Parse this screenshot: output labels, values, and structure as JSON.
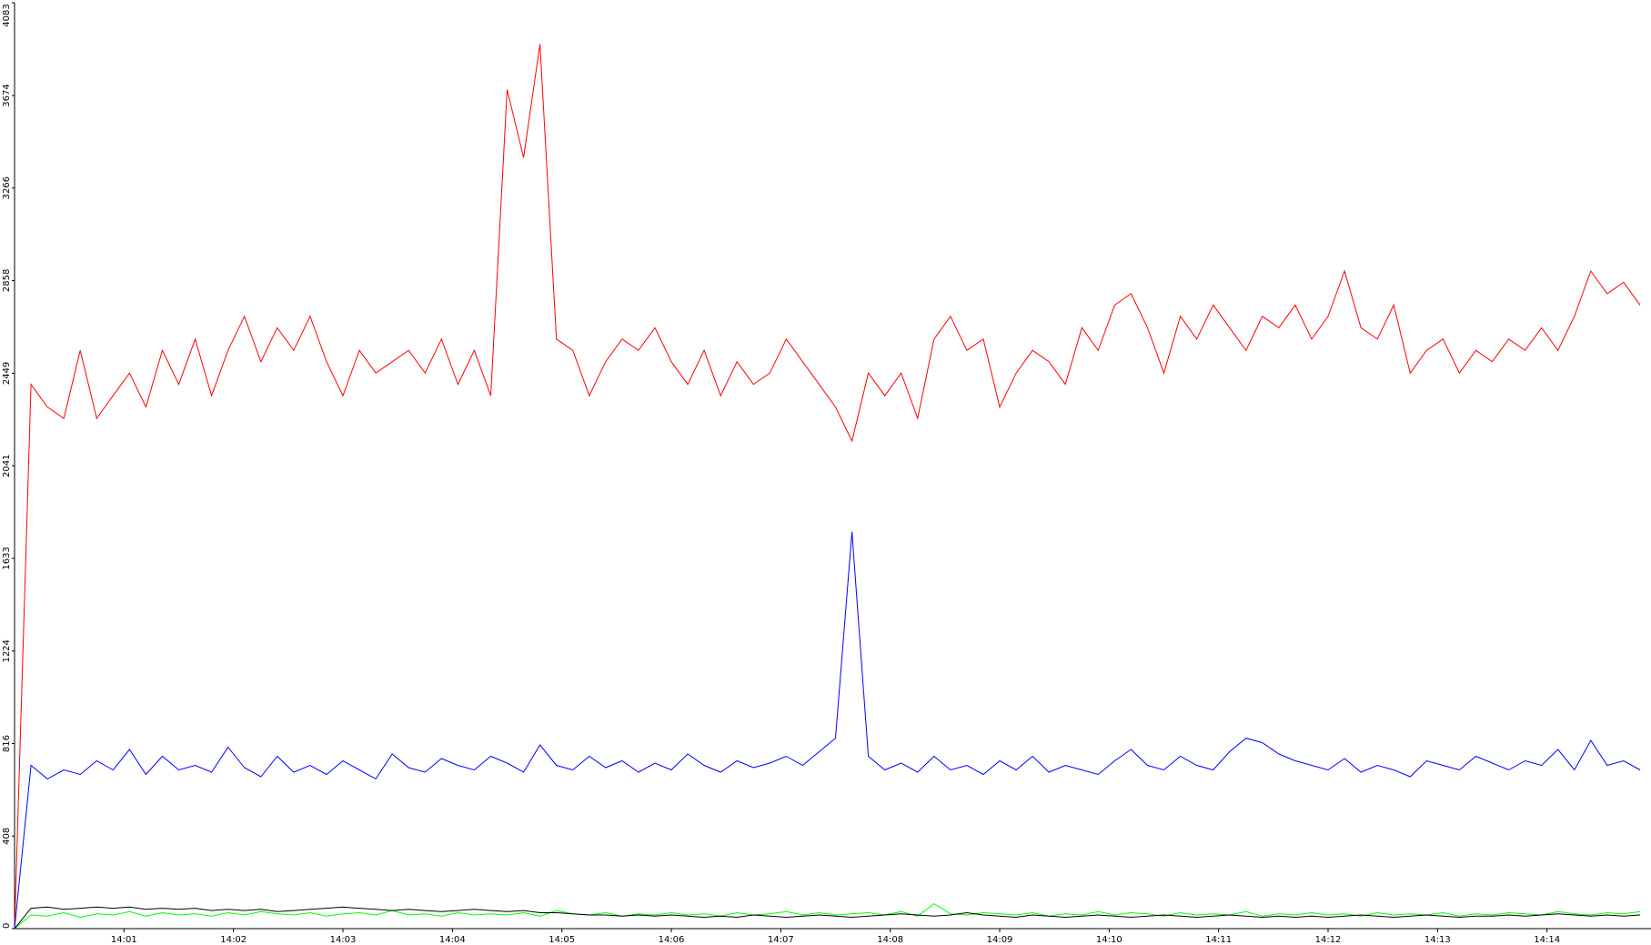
{
  "chart_data": {
    "type": "line",
    "x": [
      0,
      0.15,
      0.3,
      0.45,
      0.6,
      0.75,
      0.9,
      1.05,
      1.2,
      1.35,
      1.5,
      1.65,
      1.8,
      1.95,
      2.1,
      2.25,
      2.4,
      2.55,
      2.7,
      2.85,
      3,
      3.15,
      3.3,
      3.45,
      3.6,
      3.75,
      3.9,
      4.05,
      4.2,
      4.35,
      4.5,
      4.65,
      4.8,
      4.95,
      5.1,
      5.25,
      5.4,
      5.55,
      5.7,
      5.85,
      6,
      6.15,
      6.3,
      6.45,
      6.6,
      6.75,
      6.9,
      7.05,
      7.2,
      7.35,
      7.5,
      7.65,
      7.8,
      7.95,
      8.1,
      8.25,
      8.4,
      8.55,
      8.7,
      8.85,
      9,
      9.15,
      9.3,
      9.45,
      9.6,
      9.75,
      9.9,
      10.05,
      10.2,
      10.35,
      10.5,
      10.65,
      10.8,
      10.95,
      11.1,
      11.25,
      11.4,
      11.55,
      11.7,
      11.85,
      12,
      12.15,
      12.3,
      12.45,
      12.6,
      12.75,
      12.9,
      13.05,
      13.2,
      13.35,
      13.5,
      13.65,
      13.8,
      13.95,
      14.1,
      14.25,
      14.4,
      14.55,
      14.7,
      14.85
    ],
    "series": [
      {
        "color": "#ff0000",
        "values": [
          0,
          2400,
          2300,
          2250,
          2550,
          2250,
          2350,
          2450,
          2300,
          2550,
          2400,
          2600,
          2350,
          2550,
          2700,
          2500,
          2650,
          2550,
          2700,
          2500,
          2350,
          2550,
          2450,
          2500,
          2550,
          2450,
          2600,
          2400,
          2550,
          2350,
          3700,
          3400,
          3900,
          2600,
          2550,
          2350,
          2500,
          2600,
          2550,
          2650,
          2500,
          2400,
          2550,
          2350,
          2500,
          2400,
          2450,
          2600,
          2500,
          2400,
          2300,
          2150,
          2450,
          2350,
          2450,
          2250,
          2600,
          2700,
          2550,
          2600,
          2300,
          2450,
          2550,
          2500,
          2400,
          2650,
          2550,
          2750,
          2800,
          2650,
          2450,
          2700,
          2600,
          2750,
          2650,
          2550,
          2700,
          2650,
          2750,
          2600,
          2700,
          2900,
          2650,
          2600,
          2750,
          2450,
          2550,
          2600,
          2450,
          2550,
          2500,
          2600,
          2550,
          2650,
          2550,
          2700,
          2900,
          2800,
          2850,
          2750
        ]
      },
      {
        "color": "#0000ff",
        "values": [
          0,
          720,
          660,
          700,
          680,
          740,
          700,
          790,
          680,
          760,
          700,
          720,
          690,
          800,
          710,
          670,
          760,
          690,
          720,
          680,
          740,
          700,
          660,
          770,
          710,
          690,
          750,
          720,
          700,
          760,
          730,
          690,
          810,
          720,
          700,
          760,
          710,
          740,
          690,
          730,
          700,
          770,
          720,
          690,
          740,
          710,
          730,
          760,
          720,
          780,
          840,
          1750,
          760,
          700,
          730,
          690,
          760,
          700,
          720,
          680,
          740,
          700,
          760,
          690,
          720,
          700,
          680,
          740,
          790,
          720,
          700,
          760,
          720,
          700,
          780,
          840,
          820,
          770,
          740,
          720,
          700,
          750,
          690,
          720,
          700,
          670,
          740,
          720,
          700,
          760,
          730,
          700,
          740,
          720,
          790,
          700,
          830,
          720,
          740,
          700
        ]
      },
      {
        "color": "#00ff00",
        "values": [
          0,
          60,
          55,
          70,
          50,
          65,
          60,
          75,
          55,
          70,
          60,
          65,
          55,
          70,
          60,
          75,
          65,
          60,
          70,
          55,
          65,
          70,
          60,
          80,
          60,
          65,
          55,
          70,
          60,
          65,
          60,
          70,
          55,
          80,
          65,
          60,
          70,
          55,
          65,
          60,
          70,
          60,
          65,
          55,
          70,
          60,
          65,
          75,
          60,
          70,
          60,
          65,
          70,
          60,
          75,
          55,
          110,
          65,
          60,
          70,
          65,
          60,
          70,
          55,
          65,
          60,
          75,
          60,
          70,
          65,
          55,
          70,
          60,
          65,
          60,
          75,
          55,
          65,
          60,
          70,
          60,
          65,
          55,
          70,
          60,
          65,
          60,
          70,
          55,
          65,
          60,
          70,
          65,
          60,
          75,
          65,
          60,
          70,
          65,
          75
        ]
      },
      {
        "color": "#000000",
        "values": [
          0,
          90,
          95,
          85,
          90,
          95,
          90,
          95,
          85,
          90,
          85,
          90,
          80,
          85,
          80,
          85,
          75,
          80,
          85,
          90,
          95,
          90,
          85,
          80,
          85,
          80,
          75,
          80,
          85,
          80,
          75,
          80,
          70,
          70,
          65,
          60,
          60,
          55,
          60,
          55,
          60,
          55,
          50,
          55,
          50,
          60,
          55,
          50,
          55,
          60,
          55,
          50,
          55,
          60,
          65,
          60,
          55,
          60,
          70,
          60,
          55,
          50,
          60,
          55,
          50,
          55,
          60,
          55,
          50,
          55,
          60,
          55,
          50,
          55,
          60,
          55,
          50,
          55,
          50,
          55,
          50,
          55,
          60,
          55,
          50,
          55,
          60,
          55,
          50,
          55,
          55,
          60,
          55,
          60,
          65,
          60,
          55,
          60,
          55,
          60
        ]
      }
    ],
    "xlim": [
      0,
      14.95
    ],
    "xticks": [
      {
        "value": 1,
        "label": "14:01"
      },
      {
        "value": 2,
        "label": "14:02"
      },
      {
        "value": 3,
        "label": "14:03"
      },
      {
        "value": 4,
        "label": "14:04"
      },
      {
        "value": 5,
        "label": "14:05"
      },
      {
        "value": 6,
        "label": "14:06"
      },
      {
        "value": 7,
        "label": "14:07"
      },
      {
        "value": 8,
        "label": "14:08"
      },
      {
        "value": 9,
        "label": "14:09"
      },
      {
        "value": 10,
        "label": "14:10"
      },
      {
        "value": 11,
        "label": "14:11"
      },
      {
        "value": 12,
        "label": "14:12"
      },
      {
        "value": 13,
        "label": "14:13"
      },
      {
        "value": 14,
        "label": "14:14"
      }
    ],
    "ylim": [
      0,
      4083
    ],
    "yticks": [
      0,
      408,
      816,
      1224,
      1633,
      2041,
      2449,
      2858,
      3266,
      3674,
      4083
    ]
  }
}
